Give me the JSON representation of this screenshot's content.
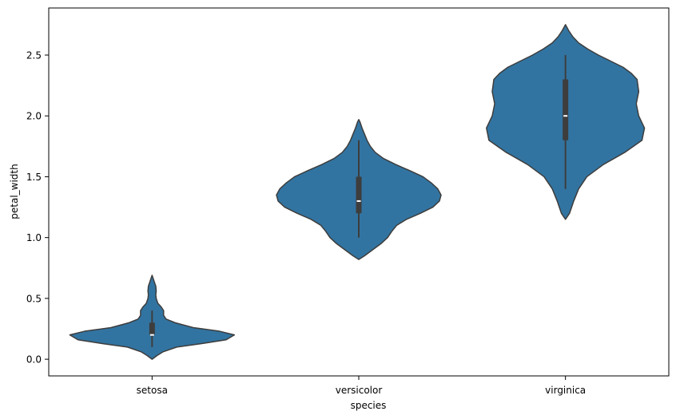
{
  "chart_data": {
    "type": "violin",
    "xlabel": "species",
    "ylabel": "petal_width",
    "categories": [
      "setosa",
      "versicolor",
      "virginica"
    ],
    "ylim": [
      -0.137,
      2.887
    ],
    "yticks": [
      {
        "value": 0.0,
        "label": "0.0"
      },
      {
        "value": 0.5,
        "label": "0.5"
      },
      {
        "value": 1.0,
        "label": "1.0"
      },
      {
        "value": 1.5,
        "label": "1.5"
      },
      {
        "value": 2.0,
        "label": "2.0"
      },
      {
        "value": 2.5,
        "label": "2.5"
      }
    ],
    "grid": false,
    "fill_color": "#3274a1",
    "line_color": "#3d3d3d",
    "violins": [
      {
        "category": "setosa",
        "min": 0.1,
        "q1": 0.2,
        "median": 0.2,
        "q3": 0.3,
        "max": 0.4,
        "whisker_low": 0.1,
        "whisker_high": 0.4,
        "density": [
          [
            0.0,
            0.0
          ],
          [
            0.03,
            0.06
          ],
          [
            0.06,
            0.13
          ],
          [
            0.1,
            0.3
          ],
          [
            0.13,
            0.62
          ],
          [
            0.16,
            0.9
          ],
          [
            0.2,
            1.0
          ],
          [
            0.23,
            0.82
          ],
          [
            0.26,
            0.5
          ],
          [
            0.3,
            0.28
          ],
          [
            0.33,
            0.17
          ],
          [
            0.36,
            0.14
          ],
          [
            0.4,
            0.14
          ],
          [
            0.43,
            0.11
          ],
          [
            0.46,
            0.07
          ],
          [
            0.5,
            0.05
          ],
          [
            0.53,
            0.045
          ],
          [
            0.56,
            0.05
          ],
          [
            0.6,
            0.045
          ],
          [
            0.63,
            0.03
          ],
          [
            0.66,
            0.015
          ],
          [
            0.69,
            0.0
          ]
        ]
      },
      {
        "category": "versicolor",
        "min": 1.0,
        "q1": 1.2,
        "median": 1.3,
        "q3": 1.5,
        "max": 1.8,
        "whisker_low": 1.0,
        "whisker_high": 1.8,
        "density": [
          [
            0.82,
            0.0
          ],
          [
            0.85,
            0.07
          ],
          [
            0.9,
            0.17
          ],
          [
            0.95,
            0.27
          ],
          [
            1.0,
            0.35
          ],
          [
            1.05,
            0.4
          ],
          [
            1.1,
            0.46
          ],
          [
            1.15,
            0.58
          ],
          [
            1.2,
            0.75
          ],
          [
            1.25,
            0.9
          ],
          [
            1.3,
            0.98
          ],
          [
            1.35,
            1.0
          ],
          [
            1.4,
            0.96
          ],
          [
            1.45,
            0.88
          ],
          [
            1.5,
            0.78
          ],
          [
            1.55,
            0.62
          ],
          [
            1.6,
            0.45
          ],
          [
            1.65,
            0.3
          ],
          [
            1.7,
            0.2
          ],
          [
            1.75,
            0.14
          ],
          [
            1.8,
            0.1
          ],
          [
            1.85,
            0.07
          ],
          [
            1.9,
            0.04
          ],
          [
            1.95,
            0.015
          ],
          [
            1.97,
            0.0
          ]
        ]
      },
      {
        "category": "virginica",
        "min": 1.4,
        "q1": 1.8,
        "median": 2.0,
        "q3": 2.3,
        "max": 2.5,
        "whisker_low": 1.4,
        "whisker_high": 2.5,
        "density": [
          [
            1.15,
            0.0
          ],
          [
            1.2,
            0.05
          ],
          [
            1.3,
            0.1
          ],
          [
            1.4,
            0.16
          ],
          [
            1.5,
            0.26
          ],
          [
            1.6,
            0.46
          ],
          [
            1.7,
            0.72
          ],
          [
            1.8,
            0.93
          ],
          [
            1.9,
            0.96
          ],
          [
            2.0,
            0.89
          ],
          [
            2.1,
            0.86
          ],
          [
            2.2,
            0.89
          ],
          [
            2.3,
            0.87
          ],
          [
            2.35,
            0.8
          ],
          [
            2.4,
            0.7
          ],
          [
            2.45,
            0.55
          ],
          [
            2.5,
            0.4
          ],
          [
            2.55,
            0.27
          ],
          [
            2.6,
            0.16
          ],
          [
            2.65,
            0.09
          ],
          [
            2.7,
            0.04
          ],
          [
            2.75,
            0.0
          ]
        ]
      }
    ]
  }
}
